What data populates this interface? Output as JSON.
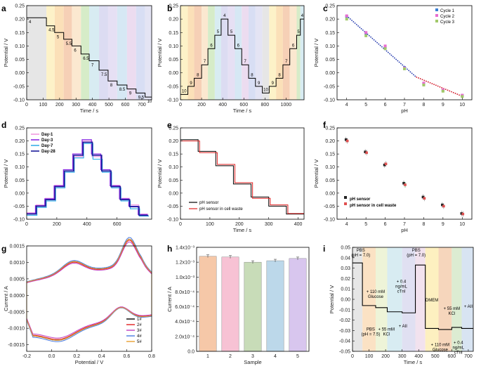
{
  "figure": {
    "panel_labels": [
      "a",
      "b",
      "c",
      "d",
      "e",
      "f",
      "g",
      "h",
      "i"
    ]
  },
  "chart_data": [
    {
      "panel": "a",
      "type": "line",
      "xlabel": "Time / s",
      "ylabel": "Potential / V",
      "xlim": [
        0,
        760
      ],
      "ylim": [
        -0.1,
        0.25
      ],
      "xticks": [
        0,
        100,
        200,
        300,
        400,
        500,
        600,
        700
      ],
      "yticks": [
        -0.1,
        -0.05,
        0.0,
        0.05,
        0.1,
        0.15,
        0.2,
        0.25
      ],
      "steps": [
        {
          "t0": 0,
          "t1": 120,
          "v": 0.205,
          "label": "4"
        },
        {
          "t0": 120,
          "t1": 170,
          "v": 0.175,
          "label": "4.5"
        },
        {
          "t0": 170,
          "t1": 225,
          "v": 0.15,
          "label": "5"
        },
        {
          "t0": 225,
          "t1": 275,
          "v": 0.125,
          "label": "5.5"
        },
        {
          "t0": 275,
          "t1": 330,
          "v": 0.1,
          "label": "6"
        },
        {
          "t0": 330,
          "t1": 380,
          "v": 0.07,
          "label": "6.5"
        },
        {
          "t0": 380,
          "t1": 440,
          "v": 0.045,
          "label": "7"
        },
        {
          "t0": 440,
          "t1": 495,
          "v": 0.01,
          "label": "7.5"
        },
        {
          "t0": 495,
          "t1": 550,
          "v": -0.03,
          "label": "8"
        },
        {
          "t0": 550,
          "t1": 610,
          "v": -0.045,
          "label": "8.5"
        },
        {
          "t0": 610,
          "t1": 665,
          "v": -0.06,
          "label": "9"
        },
        {
          "t0": 665,
          "t1": 720,
          "v": -0.075,
          "label": "9.5"
        },
        {
          "t0": 720,
          "t1": 760,
          "v": -0.09,
          "label": "10"
        }
      ]
    },
    {
      "panel": "b",
      "type": "line",
      "xlabel": "Time / s",
      "ylabel": "Potential / V",
      "xlim": [
        0,
        1170
      ],
      "ylim": [
        -0.1,
        0.25
      ],
      "xticks": [
        0,
        200,
        400,
        600,
        800,
        1000
      ],
      "yticks": [
        -0.1,
        -0.05,
        0.0,
        0.05,
        0.1,
        0.15,
        0.2,
        0.25
      ],
      "steps": [
        {
          "t0": 0,
          "t1": 70,
          "v": -0.08,
          "label": "10"
        },
        {
          "t0": 70,
          "t1": 130,
          "v": -0.05,
          "label": "9"
        },
        {
          "t0": 130,
          "t1": 200,
          "v": -0.02,
          "label": "8"
        },
        {
          "t0": 200,
          "t1": 260,
          "v": 0.03,
          "label": "7"
        },
        {
          "t0": 260,
          "t1": 325,
          "v": 0.09,
          "label": "6"
        },
        {
          "t0": 325,
          "t1": 385,
          "v": 0.14,
          "label": "5"
        },
        {
          "t0": 385,
          "t1": 450,
          "v": 0.2,
          "label": "4"
        },
        {
          "t0": 450,
          "t1": 515,
          "v": 0.14,
          "label": "5"
        },
        {
          "t0": 515,
          "t1": 580,
          "v": 0.09,
          "label": "6"
        },
        {
          "t0": 580,
          "t1": 645,
          "v": 0.03,
          "label": "7"
        },
        {
          "t0": 645,
          "t1": 710,
          "v": -0.02,
          "label": "8"
        },
        {
          "t0": 710,
          "t1": 775,
          "v": -0.05,
          "label": "9"
        },
        {
          "t0": 775,
          "t1": 840,
          "v": -0.075,
          "label": "10"
        },
        {
          "t0": 840,
          "t1": 905,
          "v": -0.05,
          "label": "9"
        },
        {
          "t0": 905,
          "t1": 970,
          "v": -0.02,
          "label": "8"
        },
        {
          "t0": 970,
          "t1": 1035,
          "v": 0.03,
          "label": "7"
        },
        {
          "t0": 1035,
          "t1": 1100,
          "v": 0.09,
          "label": "6"
        },
        {
          "t0": 1100,
          "t1": 1135,
          "v": 0.14,
          "label": "5"
        },
        {
          "t0": 1135,
          "t1": 1170,
          "v": 0.2,
          "label": "4"
        }
      ]
    },
    {
      "panel": "c",
      "type": "scatter",
      "xlabel": "pH",
      "ylabel": "Potential / V",
      "xlim": [
        3.5,
        10.5
      ],
      "ylim": [
        -0.1,
        0.25
      ],
      "xticks": [
        4,
        5,
        6,
        7,
        8,
        9,
        10
      ],
      "yticks": [
        -0.1,
        -0.05,
        0.0,
        0.05,
        0.1,
        0.15,
        0.2,
        0.25
      ],
      "series": [
        {
          "name": "Cycle 1",
          "color": "#3a7fd5",
          "x": [
            4,
            5,
            6,
            7,
            8,
            9,
            10
          ],
          "y": [
            0.21,
            0.148,
            0.095,
            0.02,
            -0.04,
            -0.065,
            -0.085
          ]
        },
        {
          "name": "Cycle 2",
          "color": "#e86ed0",
          "x": [
            4,
            5,
            6,
            7,
            8,
            9,
            10
          ],
          "y": [
            0.212,
            0.15,
            0.1,
            0.018,
            -0.038,
            -0.063,
            -0.083
          ]
        },
        {
          "name": "Cycle 3",
          "color": "#a2c96a",
          "x": [
            4,
            5,
            6,
            7,
            8,
            9,
            10
          ],
          "y": [
            0.2,
            0.138,
            0.09,
            0.015,
            -0.045,
            -0.068,
            -0.088
          ]
        }
      ],
      "fits": [
        {
          "color": "#2a3fb0",
          "x": [
            4,
            7.6
          ],
          "y": [
            0.212,
            -0.015
          ]
        },
        {
          "color": "#d21a2a",
          "x": [
            7.6,
            10
          ],
          "y": [
            -0.015,
            -0.087
          ]
        }
      ]
    },
    {
      "panel": "d",
      "type": "line",
      "xlabel": "",
      "ylabel": "Potential / V",
      "xlim": [
        0,
        830
      ],
      "ylim": [
        -0.1,
        0.25
      ],
      "xticks": [
        0,
        200,
        400,
        600
      ],
      "yticks": [
        -0.1,
        -0.05,
        0.0,
        0.05,
        0.1,
        0.15,
        0.2,
        0.25
      ],
      "series": [
        {
          "name": "Day-1",
          "color": "#f29ae0",
          "levels": [
            -0.075,
            -0.045,
            -0.02,
            0.03,
            0.085,
            0.14,
            0.2,
            0.14,
            0.085,
            0.03,
            -0.02,
            -0.045,
            -0.08
          ],
          "offset": 0
        },
        {
          "name": "Day-3",
          "color": "#8a2be2",
          "levels": [
            -0.078,
            -0.048,
            -0.022,
            0.028,
            0.09,
            0.15,
            0.205,
            0.15,
            0.09,
            0.028,
            -0.022,
            -0.05,
            -0.082
          ],
          "offset": -4
        },
        {
          "name": "Day-7",
          "color": "#3ab0e8",
          "levels": [
            -0.085,
            -0.055,
            -0.03,
            0.02,
            0.08,
            0.135,
            0.19,
            0.13,
            0.08,
            0.02,
            -0.03,
            -0.06,
            -0.088
          ],
          "offset": 6
        },
        {
          "name": "Day-28",
          "color": "#1a1a9a",
          "levels": [
            -0.08,
            -0.05,
            -0.025,
            0.025,
            0.085,
            0.145,
            0.195,
            0.145,
            0.085,
            0.025,
            -0.025,
            -0.052,
            -0.085
          ],
          "offset": 2
        }
      ],
      "step_width": 62
    },
    {
      "panel": "e",
      "type": "line",
      "xlabel": "Time / s",
      "ylabel": "Potential / V",
      "xlim": [
        0,
        420
      ],
      "ylim": [
        -0.1,
        0.25
      ],
      "xticks": [
        0,
        100,
        200,
        300,
        400
      ],
      "yticks": [
        -0.1,
        -0.05,
        0.0,
        0.05,
        0.1,
        0.15,
        0.2,
        0.25
      ],
      "series": [
        {
          "name": "pH sensor",
          "color": "#000000",
          "steps": [
            [
              0,
              0.205
            ],
            [
              60,
              0.16
            ],
            [
              120,
              0.105
            ],
            [
              180,
              0.035
            ],
            [
              240,
              -0.015
            ],
            [
              300,
              -0.05
            ],
            [
              360,
              -0.08
            ]
          ]
        },
        {
          "name": "pH sensor in cell waste",
          "color": "#e02020",
          "steps": [
            [
              0,
              0.2
            ],
            [
              65,
              0.155
            ],
            [
              125,
              0.11
            ],
            [
              185,
              0.04
            ],
            [
              245,
              -0.02
            ],
            [
              305,
              -0.045
            ],
            [
              365,
              -0.078
            ]
          ]
        }
      ]
    },
    {
      "panel": "f",
      "type": "scatter",
      "xlabel": "pH",
      "ylabel": "Potential / V",
      "xlim": [
        3.5,
        10.5
      ],
      "ylim": [
        -0.1,
        0.25
      ],
      "xticks": [
        4,
        5,
        6,
        7,
        8,
        9,
        10
      ],
      "yticks": [
        -0.1,
        -0.05,
        0.0,
        0.05,
        0.1,
        0.15,
        0.2,
        0.25
      ],
      "series": [
        {
          "name": "pH sensor",
          "color": "#222222",
          "x": [
            4,
            5,
            6,
            7,
            8,
            9,
            10
          ],
          "y": [
            0.205,
            0.158,
            0.108,
            0.038,
            -0.015,
            -0.045,
            -0.078
          ]
        },
        {
          "name": "pH sensor in cell waste",
          "color": "#e05050",
          "x": [
            4,
            5,
            6,
            7,
            8,
            9,
            10
          ],
          "y": [
            0.2,
            0.155,
            0.112,
            0.032,
            -0.02,
            -0.05,
            -0.08
          ]
        }
      ]
    },
    {
      "panel": "g",
      "type": "line",
      "xlabel": "Potential / V",
      "ylabel": "Current / A",
      "xlim": [
        -0.2,
        0.8
      ],
      "ylim": [
        -0.0017,
        0.0015
      ],
      "xticks": [
        -0.2,
        0.0,
        0.2,
        0.4,
        0.6,
        0.8
      ],
      "yticks": [
        -0.0015,
        -0.001,
        -0.0005,
        0.0,
        0.0005,
        0.001,
        0.0015
      ],
      "series": [
        {
          "name": "1#",
          "color": "#000000",
          "scale": 1.0
        },
        {
          "name": "2#",
          "color": "#e02020",
          "scale": 0.98
        },
        {
          "name": "3#",
          "color": "#c040c0",
          "scale": 0.95
        },
        {
          "name": "4#",
          "color": "#4a7ae0",
          "scale": 1.03
        },
        {
          "name": "5#",
          "color": "#e8a030",
          "scale": 1.0
        }
      ]
    },
    {
      "panel": "h",
      "type": "bar",
      "xlabel": "Sample",
      "ylabel": "Current / A",
      "categories": [
        "1",
        "2",
        "3",
        "4",
        "5"
      ],
      "values": [
        0.00128,
        0.00127,
        0.0012,
        0.00122,
        0.00125
      ],
      "colors": [
        "#f6c8a8",
        "#f7c2d4",
        "#c8dcb8",
        "#bcd8ea",
        "#d8c6ee"
      ],
      "ylim": [
        0,
        0.0014
      ],
      "yticks": [
        "0.0",
        "2.0x10⁻⁴",
        "4.0x10⁻⁴",
        "6.0x10⁻⁴",
        "8.0x10⁻⁴",
        "1.0x10⁻³",
        "1.2x10⁻³",
        "1.4x10⁻³"
      ]
    },
    {
      "panel": "i",
      "type": "line",
      "xlabel": "Time / s",
      "ylabel": "Potential / V",
      "xlim": [
        0,
        730
      ],
      "ylim": [
        -0.05,
        0.05
      ],
      "xticks": [
        0,
        100,
        200,
        300,
        400,
        500,
        600,
        700
      ],
      "yticks": [
        -0.05,
        -0.04,
        -0.03,
        -0.02,
        -0.01,
        0.0,
        0.01,
        0.02,
        0.03,
        0.04,
        0.05
      ],
      "steps": [
        [
          0,
          0.035
        ],
        [
          60,
          -0.006
        ],
        [
          140,
          -0.008
        ],
        [
          210,
          -0.012
        ],
        [
          300,
          -0.013
        ],
        [
          380,
          0.033
        ],
        [
          440,
          -0.028
        ],
        [
          520,
          -0.029
        ],
        [
          600,
          -0.027
        ],
        [
          660,
          -0.028
        ],
        [
          730,
          -0.028
        ]
      ],
      "annotations": [
        {
          "text": "PBS (pH = 7.0)",
          "x": 50,
          "y": 0.046
        },
        {
          "text": "+ 110 mM Glucose",
          "x": 140,
          "y": 0.006
        },
        {
          "text": "+ 0.4 ng/mL cTnI",
          "x": 295,
          "y": 0.016
        },
        {
          "text": "PBS (pH = 7.0)",
          "x": 385,
          "y": 0.046
        },
        {
          "text": "PBS (pH = 7.5)",
          "x": 110,
          "y": -0.03
        },
        {
          "text": "+ 55 mM KCl",
          "x": 205,
          "y": -0.03
        },
        {
          "text": "+ AII",
          "x": 305,
          "y": -0.027
        },
        {
          "text": "DMEM",
          "x": 480,
          "y": -0.002
        },
        {
          "text": "+ 55 mM KCl",
          "x": 600,
          "y": -0.01
        },
        {
          "text": "+ AII",
          "x": 700,
          "y": -0.008
        },
        {
          "text": "+ 110 mM Glucose",
          "x": 530,
          "y": -0.045
        },
        {
          "text": "+ 0.4 ng/mL cTnI",
          "x": 640,
          "y": -0.043
        }
      ]
    }
  ]
}
